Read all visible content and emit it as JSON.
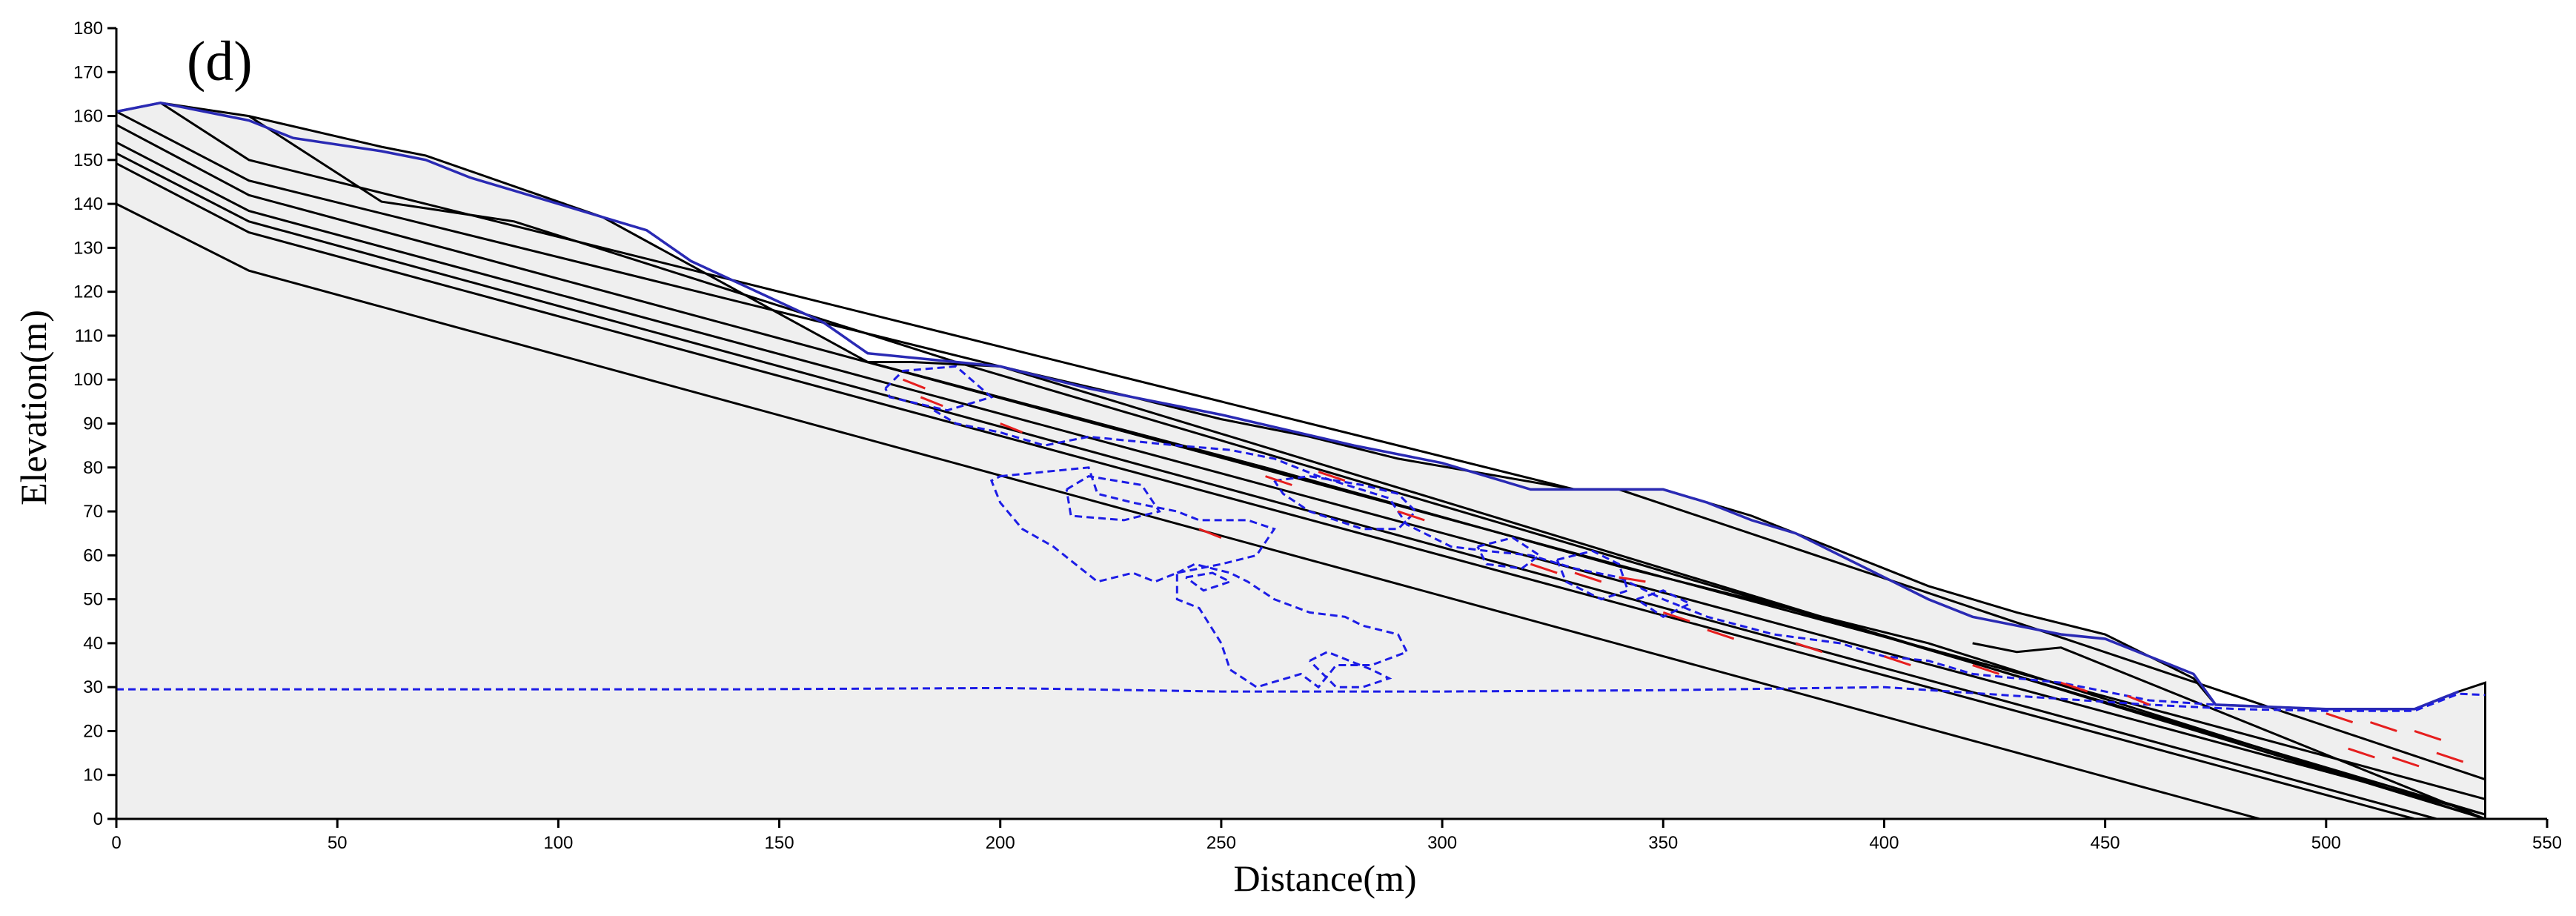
{
  "chart_data": {
    "type": "line",
    "panel_label": "(d)",
    "xlabel": "Distance(m)",
    "ylabel": "Elevation(m)",
    "xlim": [
      0,
      550
    ],
    "ylim": [
      0,
      180
    ],
    "x_ticks": [
      "0",
      "50",
      "100",
      "150",
      "200",
      "250",
      "300",
      "350",
      "400",
      "450",
      "500",
      "550"
    ],
    "y_ticks": [
      "0",
      "10",
      "20",
      "30",
      "40",
      "50",
      "60",
      "70",
      "80",
      "90",
      "100",
      "110",
      "120",
      "130",
      "140",
      "150",
      "160",
      "170",
      "180"
    ],
    "grid": false,
    "colors": {
      "domain_fill": "#efefef",
      "layer_line": "#000000",
      "surface": "#2a2ab4",
      "contour": "#1c1ce6",
      "vector": "#e61e1e"
    },
    "domain": [
      [
        0,
        161
      ],
      [
        10,
        163
      ],
      [
        30,
        160
      ],
      [
        60,
        153
      ],
      [
        70,
        151
      ],
      [
        110,
        137
      ],
      [
        130,
        126
      ],
      [
        170,
        104
      ],
      [
        180,
        104
      ],
      [
        200,
        103
      ],
      [
        230,
        96
      ],
      [
        250,
        91
      ],
      [
        270,
        87
      ],
      [
        290,
        82
      ],
      [
        330,
        75
      ],
      [
        340,
        75
      ],
      [
        350,
        75
      ],
      [
        370,
        69
      ],
      [
        390,
        61
      ],
      [
        410,
        53
      ],
      [
        430,
        47
      ],
      [
        450,
        42
      ],
      [
        460,
        37
      ],
      [
        470,
        32
      ],
      [
        475,
        26
      ],
      [
        500,
        25
      ],
      [
        520,
        25
      ],
      [
        530,
        29
      ],
      [
        536,
        31
      ],
      [
        536,
        0
      ],
      [
        0,
        0
      ]
    ],
    "layer_lines": [
      [
        [
          0,
          140
        ],
        [
          30,
          124.8
        ],
        [
          485,
          0
        ]
      ],
      [
        [
          0,
          149.2
        ],
        [
          30,
          133.5
        ],
        [
          520,
          0
        ]
      ],
      [
        [
          0,
          151.5
        ],
        [
          30,
          136
        ],
        [
          525,
          0
        ]
      ],
      [
        [
          0,
          154
        ],
        [
          30,
          138.4
        ],
        [
          536,
          1
        ]
      ],
      [
        [
          0,
          158
        ],
        [
          30,
          142
        ],
        [
          536,
          4.5
        ]
      ],
      [
        [
          0,
          161
        ],
        [
          30,
          145.3
        ],
        [
          200,
          103
        ],
        [
          536,
          0
        ]
      ],
      [
        [
          10,
          163
        ],
        [
          30,
          150
        ],
        [
          330,
          75
        ],
        [
          340,
          75
        ],
        [
          536,
          9
        ]
      ],
      [
        [
          30,
          160
        ],
        [
          60,
          140.5
        ],
        [
          90,
          136
        ],
        [
          190,
          104
        ],
        [
          536,
          1
        ]
      ],
      [
        [
          170,
          104
        ],
        [
          260,
          80
        ],
        [
          340,
          57.5
        ],
        [
          410,
          40
        ],
        [
          536,
          0
        ]
      ],
      [
        [
          420,
          40
        ],
        [
          430,
          38
        ],
        [
          440,
          39
        ],
        [
          536,
          0
        ]
      ]
    ],
    "ground_surface": [
      [
        0,
        161
      ],
      [
        10,
        163
      ],
      [
        20,
        161
      ],
      [
        30,
        159
      ],
      [
        40,
        155
      ],
      [
        60,
        152
      ],
      [
        70,
        150
      ],
      [
        80,
        146
      ],
      [
        100,
        140
      ],
      [
        110,
        137
      ],
      [
        120,
        134
      ],
      [
        130,
        127
      ],
      [
        160,
        113
      ],
      [
        170,
        106
      ],
      [
        200,
        103
      ],
      [
        220,
        98
      ],
      [
        250,
        92
      ],
      [
        280,
        85
      ],
      [
        300,
        81
      ],
      [
        320,
        75
      ],
      [
        350,
        75
      ],
      [
        360,
        72
      ],
      [
        370,
        68
      ],
      [
        380,
        65
      ],
      [
        390,
        60
      ],
      [
        410,
        50
      ],
      [
        420,
        46
      ],
      [
        440,
        42
      ],
      [
        450,
        41
      ],
      [
        460,
        37
      ],
      [
        470,
        33
      ],
      [
        475,
        26
      ],
      [
        500,
        25
      ],
      [
        520,
        25
      ],
      [
        530,
        29
      ]
    ],
    "water_table": [
      [
        0,
        29.5
      ],
      [
        100,
        29.5
      ],
      [
        140,
        29.5
      ],
      [
        200,
        29.8
      ],
      [
        250,
        29
      ],
      [
        260,
        29
      ],
      [
        275,
        29
      ],
      [
        300,
        29
      ],
      [
        350,
        29.3
      ],
      [
        400,
        30
      ],
      [
        460,
        26
      ],
      [
        480,
        25
      ],
      [
        500,
        24.6
      ],
      [
        520,
        24.6
      ],
      [
        530,
        28.5
      ],
      [
        536,
        28.2
      ]
    ],
    "contours": [
      [
        [
          174,
          98
        ],
        [
          178,
          102
        ],
        [
          190,
          103
        ],
        [
          198,
          96
        ],
        [
          188,
          93
        ],
        [
          175,
          96
        ],
        [
          174,
          98
        ]
      ],
      [
        [
          185,
          93
        ],
        [
          190,
          90
        ],
        [
          200,
          88
        ],
        [
          210,
          85
        ],
        [
          220,
          87
        ],
        [
          240,
          85
        ],
        [
          252,
          84
        ],
        [
          262,
          82
        ],
        [
          272,
          78
        ],
        [
          288,
          73
        ],
        [
          290,
          70
        ],
        [
          292,
          67
        ],
        [
          302,
          62
        ],
        [
          310,
          61
        ],
        [
          320,
          60
        ],
        [
          330,
          57
        ],
        [
          340,
          55
        ],
        [
          350,
          50
        ],
        [
          360,
          46
        ],
        [
          375,
          42
        ],
        [
          390,
          40
        ],
        [
          400,
          37
        ],
        [
          410,
          36
        ],
        [
          420,
          33
        ],
        [
          440,
          31
        ],
        [
          455,
          28
        ],
        [
          460,
          27
        ],
        [
          475,
          26
        ]
      ],
      [
        [
          200,
          78
        ],
        [
          220,
          80
        ],
        [
          222,
          74
        ],
        [
          230,
          72
        ],
        [
          240,
          70
        ],
        [
          245,
          68
        ],
        [
          256,
          68
        ],
        [
          262,
          66
        ],
        [
          258,
          60
        ],
        [
          250,
          58
        ],
        [
          240,
          56
        ],
        [
          235,
          54
        ],
        [
          230,
          56
        ],
        [
          222,
          54
        ],
        [
          212,
          62
        ],
        [
          205,
          66
        ],
        [
          200,
          72
        ],
        [
          198,
          77
        ],
        [
          200,
          78
        ]
      ],
      [
        [
          215,
          75
        ],
        [
          220,
          78
        ],
        [
          232,
          76
        ],
        [
          236,
          70
        ],
        [
          228,
          68
        ],
        [
          216,
          69
        ],
        [
          215,
          75
        ]
      ],
      [
        [
          240,
          56
        ],
        [
          244,
          58
        ],
        [
          252,
          56
        ],
        [
          256,
          54
        ],
        [
          262,
          50
        ],
        [
          270,
          47
        ],
        [
          278,
          46
        ],
        [
          282,
          44
        ],
        [
          290,
          42
        ],
        [
          292,
          38
        ],
        [
          284,
          35
        ],
        [
          276,
          35
        ],
        [
          272,
          30
        ],
        [
          268,
          33
        ],
        [
          258,
          30
        ],
        [
          252,
          34
        ],
        [
          250,
          40
        ],
        [
          245,
          48
        ],
        [
          240,
          50
        ],
        [
          240,
          56
        ]
      ],
      [
        [
          270,
          36
        ],
        [
          274,
          38
        ],
        [
          284,
          34
        ],
        [
          288,
          32
        ],
        [
          282,
          30
        ],
        [
          276,
          30
        ],
        [
          270,
          36
        ]
      ],
      [
        [
          242,
          55
        ],
        [
          248,
          56
        ],
        [
          252,
          54
        ],
        [
          246,
          52
        ],
        [
          242,
          55
        ]
      ],
      [
        [
          262,
          77
        ],
        [
          270,
          78
        ],
        [
          282,
          76
        ],
        [
          290,
          74
        ],
        [
          294,
          70
        ],
        [
          290,
          66
        ],
        [
          282,
          66
        ],
        [
          270,
          70
        ],
        [
          264,
          74
        ],
        [
          262,
          77
        ]
      ],
      [
        [
          308,
          62
        ],
        [
          316,
          64
        ],
        [
          322,
          60
        ],
        [
          318,
          57
        ],
        [
          310,
          58
        ],
        [
          308,
          62
        ]
      ],
      [
        [
          326,
          59
        ],
        [
          334,
          61
        ],
        [
          340,
          58
        ],
        [
          342,
          52
        ],
        [
          336,
          50
        ],
        [
          328,
          54
        ],
        [
          326,
          59
        ]
      ],
      [
        [
          344,
          50
        ],
        [
          350,
          52
        ],
        [
          356,
          49
        ],
        [
          350,
          46
        ],
        [
          344,
          50
        ]
      ]
    ],
    "vectors": [
      [
        [
          178,
          100
        ],
        [
          183,
          98
        ]
      ],
      [
        [
          182,
          96
        ],
        [
          187,
          94
        ]
      ],
      [
        [
          200,
          90
        ],
        [
          205,
          88
        ]
      ],
      [
        [
          245,
          66
        ],
        [
          250,
          64
        ]
      ],
      [
        [
          260,
          78
        ],
        [
          266,
          76
        ]
      ],
      [
        [
          272,
          79
        ],
        [
          278,
          77
        ]
      ],
      [
        [
          290,
          70
        ],
        [
          296,
          68
        ]
      ],
      [
        [
          320,
          58
        ],
        [
          326,
          56
        ]
      ],
      [
        [
          330,
          56
        ],
        [
          336,
          54
        ]
      ],
      [
        [
          340,
          55
        ],
        [
          346,
          54
        ]
      ],
      [
        [
          350,
          47
        ],
        [
          356,
          45
        ]
      ],
      [
        [
          360,
          43
        ],
        [
          366,
          41
        ]
      ],
      [
        [
          380,
          40
        ],
        [
          386,
          38
        ]
      ],
      [
        [
          400,
          37
        ],
        [
          406,
          35
        ]
      ],
      [
        [
          420,
          35
        ],
        [
          426,
          33
        ]
      ],
      [
        [
          440,
          31
        ],
        [
          446,
          29
        ]
      ],
      [
        [
          455,
          28
        ],
        [
          460,
          26
        ]
      ],
      [
        [
          500,
          24
        ],
        [
          506,
          22
        ]
      ],
      [
        [
          510,
          22
        ],
        [
          516,
          20
        ]
      ],
      [
        [
          520,
          20
        ],
        [
          526,
          18
        ]
      ],
      [
        [
          525,
          15
        ],
        [
          531,
          13
        ]
      ],
      [
        [
          515,
          14
        ],
        [
          521,
          12
        ]
      ],
      [
        [
          505,
          16
        ],
        [
          511,
          14
        ]
      ]
    ]
  }
}
